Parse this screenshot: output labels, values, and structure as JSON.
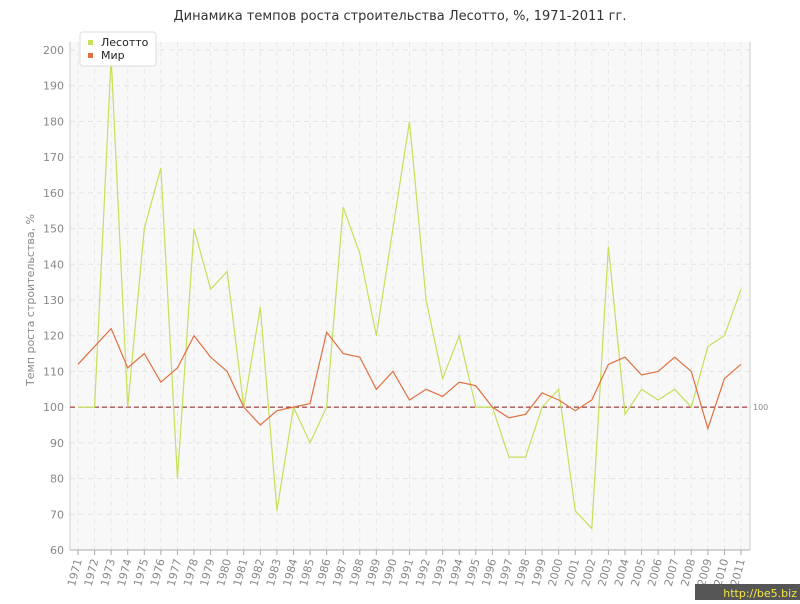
{
  "chart_data": {
    "type": "line",
    "title": "Динамика темпов роста строительства Лесотто, %, 1971-2011 гг.",
    "y_label": "Темп роста строительства, %",
    "categories": [
      "1971",
      "1972",
      "1973",
      "1974",
      "1975",
      "1976",
      "1977",
      "1978",
      "1979",
      "1980",
      "1981",
      "1982",
      "1983",
      "1984",
      "1985",
      "1986",
      "1987",
      "1988",
      "1989",
      "1990",
      "1991",
      "1992",
      "1993",
      "1994",
      "1995",
      "1996",
      "1997",
      "1998",
      "1999",
      "2000",
      "2001",
      "2002",
      "2003",
      "2004",
      "2005",
      "2006",
      "2007",
      "2008",
      "2009",
      "2010",
      "2011"
    ],
    "series": [
      {
        "name": "Лесотто",
        "color": "#c5e05a",
        "values": [
          100,
          100,
          198,
          100,
          150,
          167,
          80,
          150,
          133,
          138,
          100,
          128,
          71,
          100,
          90,
          100,
          156,
          143,
          120,
          150,
          180,
          130,
          108,
          120,
          100,
          100,
          86,
          86,
          100,
          105,
          71,
          66,
          145,
          98,
          105,
          102,
          105,
          100,
          117,
          120,
          133
        ]
      },
      {
        "name": "Мир",
        "color": "#e07040",
        "values": [
          112,
          117,
          122,
          111,
          115,
          107,
          111,
          120,
          114,
          110,
          100,
          95,
          99,
          100,
          101,
          121,
          115,
          114,
          105,
          110,
          102,
          105,
          103,
          107,
          106,
          100,
          97,
          98,
          104,
          102,
          99,
          102,
          112,
          114,
          109,
          110,
          114,
          110,
          94,
          108,
          112
        ]
      }
    ],
    "ylim": [
      60,
      200
    ],
    "yticks": [
      60,
      70,
      80,
      90,
      100,
      110,
      120,
      130,
      140,
      150,
      160,
      170,
      180,
      190,
      200
    ],
    "grid": true,
    "legend": "top-left",
    "reference_line": 100,
    "reference_color": "#8b1a1a",
    "watermark": "http://be5.biz"
  }
}
